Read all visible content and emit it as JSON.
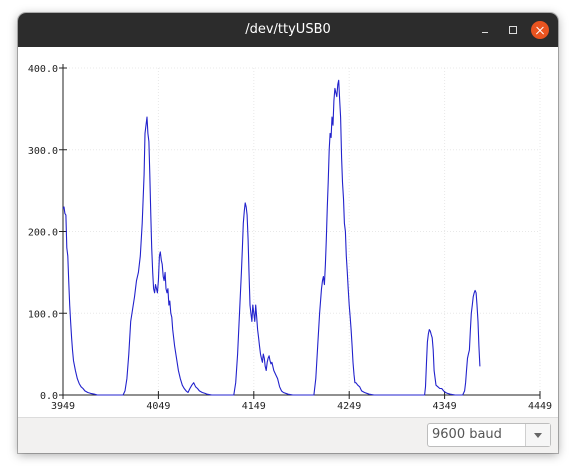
{
  "window": {
    "title": "/dev/ttyUSB0"
  },
  "controls": {
    "minimize": "minimize-icon",
    "maximize": "maximize-icon",
    "close": "close-icon"
  },
  "colors": {
    "trace": "#2222cc",
    "titlebar": "#2c2c2c",
    "close": "#e95420"
  },
  "baud": {
    "selected": "9600 baud"
  },
  "chart_data": {
    "type": "line",
    "title": "",
    "xlabel": "",
    "ylabel": "",
    "xlim": [
      3949,
      4449
    ],
    "ylim": [
      0,
      400
    ],
    "x_ticks": [
      3949,
      4049,
      4149,
      4249,
      4349,
      4449
    ],
    "x_tick_labels": [
      "3949",
      "4049",
      "4149",
      "4249",
      "4349",
      "4449"
    ],
    "y_ticks": [
      0,
      100,
      200,
      300,
      400
    ],
    "y_tick_labels": [
      "0.0",
      "100.0",
      "200.0",
      "300.0",
      "400.0"
    ],
    "grid": true,
    "series": [
      {
        "name": "",
        "points": [
          [
            3949,
            228
          ],
          [
            3950,
            230
          ],
          [
            3951,
            222
          ],
          [
            3952,
            220
          ],
          [
            3953,
            180
          ],
          [
            3954,
            170
          ],
          [
            3955,
            140
          ],
          [
            3956,
            110
          ],
          [
            3957,
            90
          ],
          [
            3958,
            70
          ],
          [
            3959,
            55
          ],
          [
            3960,
            42
          ],
          [
            3962,
            30
          ],
          [
            3964,
            20
          ],
          [
            3966,
            14
          ],
          [
            3968,
            10
          ],
          [
            3970,
            8
          ],
          [
            3972,
            5
          ],
          [
            3975,
            3
          ],
          [
            3978,
            2
          ],
          [
            3982,
            1
          ],
          [
            3985,
            0
          ],
          [
            3990,
            0
          ],
          [
            3995,
            0
          ],
          [
            3998,
            0
          ],
          [
            4003,
            0
          ],
          [
            4008,
            0
          ],
          [
            4012,
            0
          ],
          [
            4014,
            5
          ],
          [
            4016,
            20
          ],
          [
            4018,
            50
          ],
          [
            4020,
            90
          ],
          [
            4022,
            105
          ],
          [
            4024,
            120
          ],
          [
            4026,
            140
          ],
          [
            4028,
            150
          ],
          [
            4030,
            170
          ],
          [
            4032,
            210
          ],
          [
            4034,
            270
          ],
          [
            4035,
            320
          ],
          [
            4036,
            330
          ],
          [
            4037,
            340
          ],
          [
            4038,
            320
          ],
          [
            4039,
            310
          ],
          [
            4040,
            270
          ],
          [
            4041,
            220
          ],
          [
            4042,
            180
          ],
          [
            4043,
            150
          ],
          [
            4044,
            130
          ],
          [
            4045,
            125
          ],
          [
            4046,
            135
          ],
          [
            4047,
            130
          ],
          [
            4048,
            125
          ],
          [
            4049,
            140
          ],
          [
            4050,
            170
          ],
          [
            4051,
            175
          ],
          [
            4052,
            165
          ],
          [
            4053,
            160
          ],
          [
            4054,
            145
          ],
          [
            4055,
            140
          ],
          [
            4056,
            150
          ],
          [
            4057,
            130
          ],
          [
            4058,
            125
          ],
          [
            4059,
            130
          ],
          [
            4060,
            110
          ],
          [
            4061,
            115
          ],
          [
            4062,
            100
          ],
          [
            4063,
            95
          ],
          [
            4064,
            80
          ],
          [
            4066,
            60
          ],
          [
            4068,
            45
          ],
          [
            4070,
            30
          ],
          [
            4072,
            20
          ],
          [
            4074,
            12
          ],
          [
            4076,
            8
          ],
          [
            4078,
            5
          ],
          [
            4080,
            3
          ],
          [
            4082,
            8
          ],
          [
            4084,
            12
          ],
          [
            4086,
            15
          ],
          [
            4088,
            10
          ],
          [
            4090,
            8
          ],
          [
            4092,
            5
          ],
          [
            4095,
            3
          ],
          [
            4098,
            2
          ],
          [
            4100,
            1
          ],
          [
            4105,
            0
          ],
          [
            4110,
            0
          ],
          [
            4115,
            0
          ],
          [
            4120,
            0
          ],
          [
            4125,
            0
          ],
          [
            4128,
            0
          ],
          [
            4130,
            15
          ],
          [
            4132,
            50
          ],
          [
            4134,
            100
          ],
          [
            4136,
            150
          ],
          [
            4137,
            180
          ],
          [
            4138,
            210
          ],
          [
            4139,
            225
          ],
          [
            4140,
            235
          ],
          [
            4141,
            230
          ],
          [
            4142,
            220
          ],
          [
            4143,
            190
          ],
          [
            4144,
            150
          ],
          [
            4145,
            110
          ],
          [
            4146,
            100
          ],
          [
            4147,
            90
          ],
          [
            4148,
            110
          ],
          [
            4149,
            100
          ],
          [
            4150,
            90
          ],
          [
            4151,
            110
          ],
          [
            4152,
            95
          ],
          [
            4153,
            80
          ],
          [
            4154,
            70
          ],
          [
            4155,
            60
          ],
          [
            4156,
            50
          ],
          [
            4157,
            45
          ],
          [
            4158,
            40
          ],
          [
            4159,
            50
          ],
          [
            4160,
            45
          ],
          [
            4161,
            35
          ],
          [
            4162,
            30
          ],
          [
            4163,
            40
          ],
          [
            4164,
            45
          ],
          [
            4165,
            48
          ],
          [
            4166,
            42
          ],
          [
            4167,
            38
          ],
          [
            4168,
            40
          ],
          [
            4170,
            30
          ],
          [
            4172,
            25
          ],
          [
            4174,
            20
          ],
          [
            4176,
            10
          ],
          [
            4178,
            5
          ],
          [
            4180,
            3
          ],
          [
            4185,
            1
          ],
          [
            4190,
            0
          ],
          [
            4195,
            0
          ],
          [
            4200,
            0
          ],
          [
            4205,
            0
          ],
          [
            4212,
            0
          ],
          [
            4214,
            20
          ],
          [
            4216,
            60
          ],
          [
            4218,
            100
          ],
          [
            4220,
            130
          ],
          [
            4221,
            140
          ],
          [
            4222,
            145
          ],
          [
            4223,
            135
          ],
          [
            4224,
            160
          ],
          [
            4225,
            190
          ],
          [
            4226,
            230
          ],
          [
            4227,
            260
          ],
          [
            4228,
            300
          ],
          [
            4229,
            320
          ],
          [
            4230,
            315
          ],
          [
            4231,
            340
          ],
          [
            4232,
            330
          ],
          [
            4233,
            360
          ],
          [
            4234,
            375
          ],
          [
            4235,
            370
          ],
          [
            4236,
            365
          ],
          [
            4237,
            380
          ],
          [
            4238,
            385
          ],
          [
            4239,
            360
          ],
          [
            4240,
            340
          ],
          [
            4241,
            290
          ],
          [
            4242,
            260
          ],
          [
            4243,
            240
          ],
          [
            4244,
            210
          ],
          [
            4245,
            200
          ],
          [
            4246,
            170
          ],
          [
            4247,
            150
          ],
          [
            4248,
            130
          ],
          [
            4249,
            110
          ],
          [
            4250,
            95
          ],
          [
            4251,
            80
          ],
          [
            4252,
            60
          ],
          [
            4253,
            40
          ],
          [
            4254,
            25
          ],
          [
            4255,
            15
          ],
          [
            4256,
            15
          ],
          [
            4258,
            12
          ],
          [
            4260,
            10
          ],
          [
            4262,
            5
          ],
          [
            4265,
            3
          ],
          [
            4270,
            1
          ],
          [
            4275,
            0
          ],
          [
            4285,
            0
          ],
          [
            4295,
            0
          ],
          [
            4305,
            0
          ],
          [
            4315,
            0
          ],
          [
            4325,
            0
          ],
          [
            4328,
            0
          ],
          [
            4329,
            10
          ],
          [
            4330,
            40
          ],
          [
            4331,
            65
          ],
          [
            4332,
            75
          ],
          [
            4333,
            80
          ],
          [
            4334,
            78
          ],
          [
            4335,
            74
          ],
          [
            4336,
            70
          ],
          [
            4337,
            55
          ],
          [
            4338,
            30
          ],
          [
            4340,
            12
          ],
          [
            4342,
            10
          ],
          [
            4344,
            8
          ],
          [
            4346,
            8
          ],
          [
            4348,
            5
          ],
          [
            4350,
            3
          ],
          [
            4352,
            2
          ],
          [
            4355,
            1
          ],
          [
            4360,
            0
          ],
          [
            4365,
            0
          ],
          [
            4368,
            0
          ],
          [
            4370,
            5
          ],
          [
            4371,
            15
          ],
          [
            4372,
            30
          ],
          [
            4373,
            45
          ],
          [
            4374,
            50
          ],
          [
            4375,
            55
          ],
          [
            4376,
            80
          ],
          [
            4377,
            100
          ],
          [
            4378,
            110
          ],
          [
            4379,
            120
          ],
          [
            4380,
            125
          ],
          [
            4381,
            128
          ],
          [
            4382,
            125
          ],
          [
            4383,
            110
          ],
          [
            4384,
            90
          ],
          [
            4385,
            60
          ],
          [
            4386,
            35
          ]
        ]
      }
    ]
  }
}
